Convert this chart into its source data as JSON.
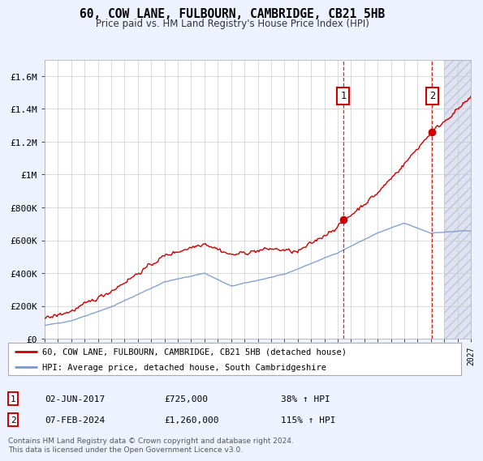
{
  "title": "60, COW LANE, FULBOURN, CAMBRIDGE, CB21 5HB",
  "subtitle": "Price paid vs. HM Land Registry's House Price Index (HPI)",
  "ylim": [
    0,
    1700000
  ],
  "yticks": [
    0,
    200000,
    400000,
    600000,
    800000,
    1000000,
    1200000,
    1400000,
    1600000
  ],
  "ytick_labels": [
    "£0",
    "£200K",
    "£400K",
    "£600K",
    "£800K",
    "£1M",
    "£1.2M",
    "£1.4M",
    "£1.6M"
  ],
  "bg_color": "#eef2ff",
  "plot_bg": "#ffffff",
  "grid_color": "#cccccc",
  "red_line_color": "#cc0000",
  "blue_line_color": "#7799cc",
  "sale1_date": "02-JUN-2017",
  "sale1_value": 725000,
  "sale1_label": "38% ↑ HPI",
  "sale1_x": 2017.42,
  "sale2_date": "07-FEB-2024",
  "sale2_value": 1260000,
  "sale2_label": "115% ↑ HPI",
  "sale2_x": 2024.1,
  "legend_label_red": "60, COW LANE, FULBOURN, CAMBRIDGE, CB21 5HB (detached house)",
  "legend_label_blue": "HPI: Average price, detached house, South Cambridgeshire",
  "footer": "Contains HM Land Registry data © Crown copyright and database right 2024.\nThis data is licensed under the Open Government Licence v3.0.",
  "xmin": 1995,
  "xmax": 2027,
  "hatch_start": 2025.0,
  "hatch_color": "#c8d0e8"
}
